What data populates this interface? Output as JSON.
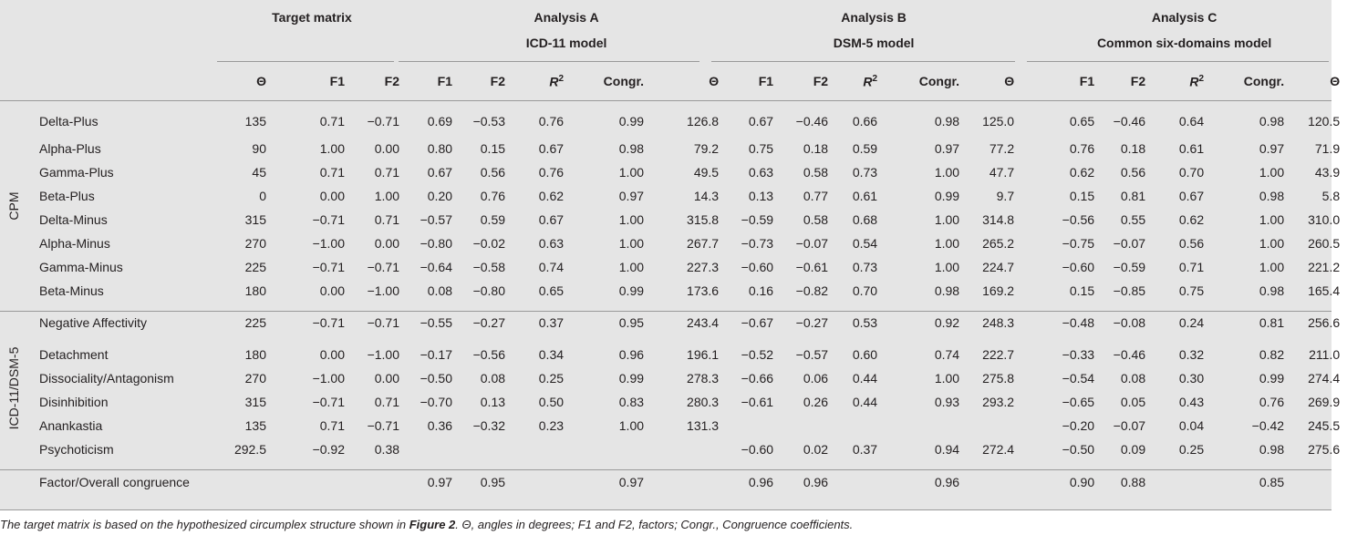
{
  "headers": {
    "target": "Target matrix",
    "a_title": "Analysis A",
    "a_model": "ICD-11 model",
    "b_title": "Analysis B",
    "b_model": "DSM-5 model",
    "c_title": "Analysis C",
    "c_model": "Common six-domains model",
    "theta": "Θ",
    "f1": "F1",
    "f2": "F2",
    "r": "R",
    "r_sup": "2",
    "congr": "Congr."
  },
  "groups": {
    "cpm": "CPM",
    "icd": "ICD-11/DSM-5"
  },
  "cpm_rows": [
    [
      "Delta-Plus",
      "135",
      "0.71",
      "−0.71",
      "0.69",
      "−0.53",
      "0.76",
      "0.99",
      "126.8",
      "0.67",
      "−0.46",
      "0.66",
      "0.98",
      "125.0",
      "0.65",
      "−0.46",
      "0.64",
      "0.98",
      "120.5"
    ],
    [
      "Alpha-Plus",
      "90",
      "1.00",
      "0.00",
      "0.80",
      "0.15",
      "0.67",
      "0.98",
      "79.2",
      "0.75",
      "0.18",
      "0.59",
      "0.97",
      "77.2",
      "0.76",
      "0.18",
      "0.61",
      "0.97",
      "71.9"
    ],
    [
      "Gamma-Plus",
      "45",
      "0.71",
      "0.71",
      "0.67",
      "0.56",
      "0.76",
      "1.00",
      "49.5",
      "0.63",
      "0.58",
      "0.73",
      "1.00",
      "47.7",
      "0.62",
      "0.56",
      "0.70",
      "1.00",
      "43.9"
    ],
    [
      "Beta-Plus",
      "0",
      "0.00",
      "1.00",
      "0.20",
      "0.76",
      "0.62",
      "0.97",
      "14.3",
      "0.13",
      "0.77",
      "0.61",
      "0.99",
      "9.7",
      "0.15",
      "0.81",
      "0.67",
      "0.98",
      "5.8"
    ],
    [
      "Delta-Minus",
      "315",
      "−0.71",
      "0.71",
      "−0.57",
      "0.59",
      "0.67",
      "1.00",
      "315.8",
      "−0.59",
      "0.58",
      "0.68",
      "1.00",
      "314.8",
      "−0.56",
      "0.55",
      "0.62",
      "1.00",
      "310.0"
    ],
    [
      "Alpha-Minus",
      "270",
      "−1.00",
      "0.00",
      "−0.80",
      "−0.02",
      "0.63",
      "1.00",
      "267.7",
      "−0.73",
      "−0.07",
      "0.54",
      "1.00",
      "265.2",
      "−0.75",
      "−0.07",
      "0.56",
      "1.00",
      "260.5"
    ],
    [
      "Gamma-Minus",
      "225",
      "−0.71",
      "−0.71",
      "−0.64",
      "−0.58",
      "0.74",
      "1.00",
      "227.3",
      "−0.60",
      "−0.61",
      "0.73",
      "1.00",
      "224.7",
      "−0.60",
      "−0.59",
      "0.71",
      "1.00",
      "221.2"
    ],
    [
      "Beta-Minus",
      "180",
      "0.00",
      "−1.00",
      "0.08",
      "−0.80",
      "0.65",
      "0.99",
      "173.6",
      "0.16",
      "−0.82",
      "0.70",
      "0.98",
      "169.2",
      "0.15",
      "−0.85",
      "0.75",
      "0.98",
      "165.4"
    ]
  ],
  "icd_rows": [
    [
      "Negative Affectivity",
      "225",
      "−0.71",
      "−0.71",
      "−0.55",
      "−0.27",
      "0.37",
      "0.95",
      "243.4",
      "−0.67",
      "−0.27",
      "0.53",
      "0.92",
      "248.3",
      "−0.48",
      "−0.08",
      "0.24",
      "0.81",
      "256.6"
    ],
    [
      "Detachment",
      "180",
      "0.00",
      "−1.00",
      "−0.17",
      "−0.56",
      "0.34",
      "0.96",
      "196.1",
      "−0.52",
      "−0.57",
      "0.60",
      "0.74",
      "222.7",
      "−0.33",
      "−0.46",
      "0.32",
      "0.82",
      "211.0"
    ],
    [
      "Dissociality/Antagonism",
      "270",
      "−1.00",
      "0.00",
      "−0.50",
      "0.08",
      "0.25",
      "0.99",
      "278.3",
      "−0.66",
      "0.06",
      "0.44",
      "1.00",
      "275.8",
      "−0.54",
      "0.08",
      "0.30",
      "0.99",
      "274.4"
    ],
    [
      "Disinhibition",
      "315",
      "−0.71",
      "0.71",
      "−0.70",
      "0.13",
      "0.50",
      "0.83",
      "280.3",
      "−0.61",
      "0.26",
      "0.44",
      "0.93",
      "293.2",
      "−0.65",
      "0.05",
      "0.43",
      "0.76",
      "269.9"
    ],
    [
      "Anankastia",
      "135",
      "0.71",
      "−0.71",
      "0.36",
      "−0.32",
      "0.23",
      "1.00",
      "131.3",
      "",
      "",
      "",
      "",
      "",
      "−0.20",
      "−0.07",
      "0.04",
      "−0.42",
      "245.5"
    ],
    [
      "Psychoticism",
      "292.5",
      "−0.92",
      "0.38",
      "",
      "",
      "",
      "",
      "",
      "−0.60",
      "0.02",
      "0.37",
      "0.94",
      "272.4",
      "−0.50",
      "0.09",
      "0.25",
      "0.98",
      "275.6"
    ]
  ],
  "congruence_row": [
    "Factor/Overall congruence",
    "",
    "",
    "",
    "0.97",
    "0.95",
    "",
    "0.97",
    "",
    "0.96",
    "0.96",
    "",
    "0.96",
    "",
    "0.90",
    "0.88",
    "",
    "0.85",
    ""
  ],
  "caption": {
    "pre": "The target matrix is based on the hypothesized circumplex structure shown in ",
    "bold": "Figure 2",
    "post": ". Θ, angles in degrees; F1 and F2, factors; Congr., Congruence coefficients."
  }
}
